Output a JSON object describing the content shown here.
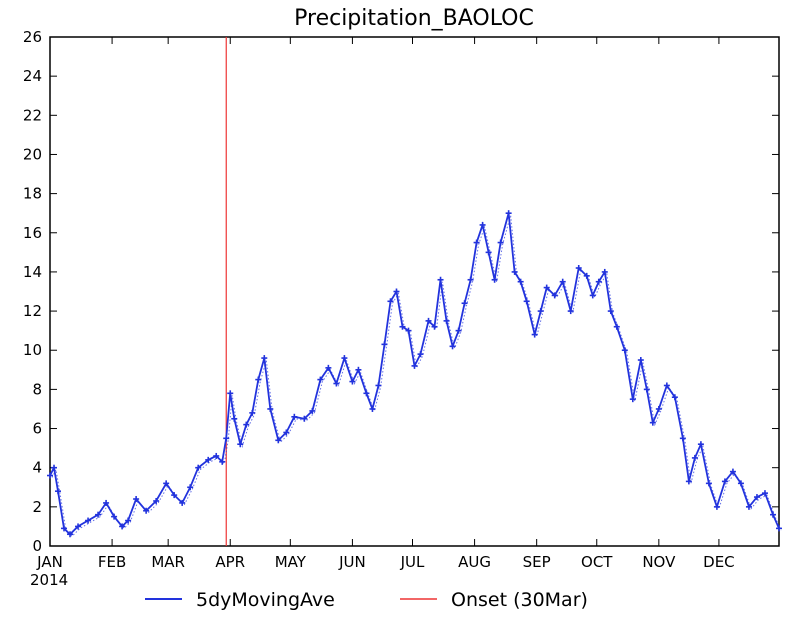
{
  "chart_data": {
    "type": "line",
    "title": "Precipitation_BAOLOC",
    "xlabel": "",
    "ylabel": "",
    "year_label": "2014",
    "x_domain": [
      "2014-01-01",
      "2014-12-31"
    ],
    "ylim": [
      0,
      26
    ],
    "y_ticks": [
      0,
      2,
      4,
      6,
      8,
      10,
      12,
      14,
      16,
      18,
      20,
      22,
      24,
      26
    ],
    "month_ticks": [
      {
        "label": "JAN",
        "date": "2014-01-01"
      },
      {
        "label": "FEB",
        "date": "2014-02-01"
      },
      {
        "label": "MAR",
        "date": "2014-03-01"
      },
      {
        "label": "APR",
        "date": "2014-04-01"
      },
      {
        "label": "MAY",
        "date": "2014-05-01"
      },
      {
        "label": "JUN",
        "date": "2014-06-01"
      },
      {
        "label": "JUL",
        "date": "2014-07-01"
      },
      {
        "label": "AUG",
        "date": "2014-08-01"
      },
      {
        "label": "SEP",
        "date": "2014-09-01"
      },
      {
        "label": "OCT",
        "date": "2014-10-01"
      },
      {
        "label": "NOV",
        "date": "2014-11-01"
      },
      {
        "label": "DEC",
        "date": "2014-12-01"
      }
    ],
    "grid": false,
    "legend_position": "bottom",
    "series": [
      {
        "name": "5dyMovingAve",
        "color": "#2233dd",
        "marker": "plus",
        "x": [
          "2014-01-01",
          "2014-01-03",
          "2014-01-05",
          "2014-01-08",
          "2014-01-11",
          "2014-01-15",
          "2014-01-20",
          "2014-01-25",
          "2014-01-29",
          "2014-02-02",
          "2014-02-06",
          "2014-02-09",
          "2014-02-13",
          "2014-02-18",
          "2014-02-23",
          "2014-02-28",
          "2014-03-04",
          "2014-03-08",
          "2014-03-12",
          "2014-03-16",
          "2014-03-21",
          "2014-03-25",
          "2014-03-28",
          "2014-03-30",
          "2014-04-01",
          "2014-04-03",
          "2014-04-06",
          "2014-04-09",
          "2014-04-12",
          "2014-04-15",
          "2014-04-18",
          "2014-04-21",
          "2014-04-25",
          "2014-04-29",
          "2014-05-03",
          "2014-05-08",
          "2014-05-12",
          "2014-05-16",
          "2014-05-20",
          "2014-05-24",
          "2014-05-28",
          "2014-06-01",
          "2014-06-04",
          "2014-06-08",
          "2014-06-11",
          "2014-06-14",
          "2014-06-17",
          "2014-06-20",
          "2014-06-23",
          "2014-06-26",
          "2014-06-29",
          "2014-07-02",
          "2014-07-05",
          "2014-07-09",
          "2014-07-12",
          "2014-07-15",
          "2014-07-18",
          "2014-07-21",
          "2014-07-24",
          "2014-07-27",
          "2014-07-30",
          "2014-08-02",
          "2014-08-05",
          "2014-08-08",
          "2014-08-11",
          "2014-08-14",
          "2014-08-18",
          "2014-08-21",
          "2014-08-24",
          "2014-08-27",
          "2014-08-31",
          "2014-09-03",
          "2014-09-06",
          "2014-09-10",
          "2014-09-14",
          "2014-09-18",
          "2014-09-22",
          "2014-09-26",
          "2014-09-29",
          "2014-10-02",
          "2014-10-05",
          "2014-10-08",
          "2014-10-11",
          "2014-10-15",
          "2014-10-19",
          "2014-10-23",
          "2014-10-26",
          "2014-10-29",
          "2014-11-01",
          "2014-11-05",
          "2014-11-09",
          "2014-11-13",
          "2014-11-16",
          "2014-11-19",
          "2014-11-22",
          "2014-11-26",
          "2014-11-30",
          "2014-12-04",
          "2014-12-08",
          "2014-12-12",
          "2014-12-16",
          "2014-12-20",
          "2014-12-24",
          "2014-12-28",
          "2014-12-31"
        ],
        "values": [
          3.6,
          4.0,
          2.8,
          0.9,
          0.6,
          1.0,
          1.3,
          1.6,
          2.2,
          1.5,
          1.0,
          1.3,
          2.4,
          1.8,
          2.3,
          3.2,
          2.6,
          2.2,
          3.0,
          4.0,
          4.4,
          4.6,
          4.3,
          5.5,
          7.8,
          6.5,
          5.2,
          6.2,
          6.8,
          8.5,
          9.6,
          7.0,
          5.4,
          5.8,
          6.6,
          6.5,
          6.9,
          8.5,
          9.1,
          8.3,
          9.6,
          8.4,
          9.0,
          7.8,
          7.0,
          8.2,
          10.3,
          12.5,
          13.0,
          11.2,
          11.0,
          9.2,
          9.8,
          11.5,
          11.2,
          13.6,
          11.5,
          10.2,
          11.0,
          12.4,
          13.6,
          15.5,
          16.4,
          15.0,
          13.6,
          15.5,
          17.0,
          14.0,
          13.5,
          12.5,
          10.8,
          12.0,
          13.2,
          12.8,
          13.5,
          12.0,
          14.2,
          13.8,
          12.8,
          13.5,
          14.0,
          12.0,
          11.2,
          10.0,
          7.5,
          9.5,
          8.0,
          6.3,
          7.0,
          8.2,
          7.6,
          5.5,
          3.3,
          4.5,
          5.2,
          3.2,
          2.0,
          3.3,
          3.8,
          3.2,
          2.0,
          2.5,
          2.7,
          1.6,
          0.9
        ]
      },
      {
        "name": "Onset (30Mar)",
        "color": "#ee3333",
        "marker": "none",
        "x": [
          "2014-03-30",
          "2014-03-30"
        ],
        "values": [
          0,
          26
        ]
      }
    ]
  }
}
